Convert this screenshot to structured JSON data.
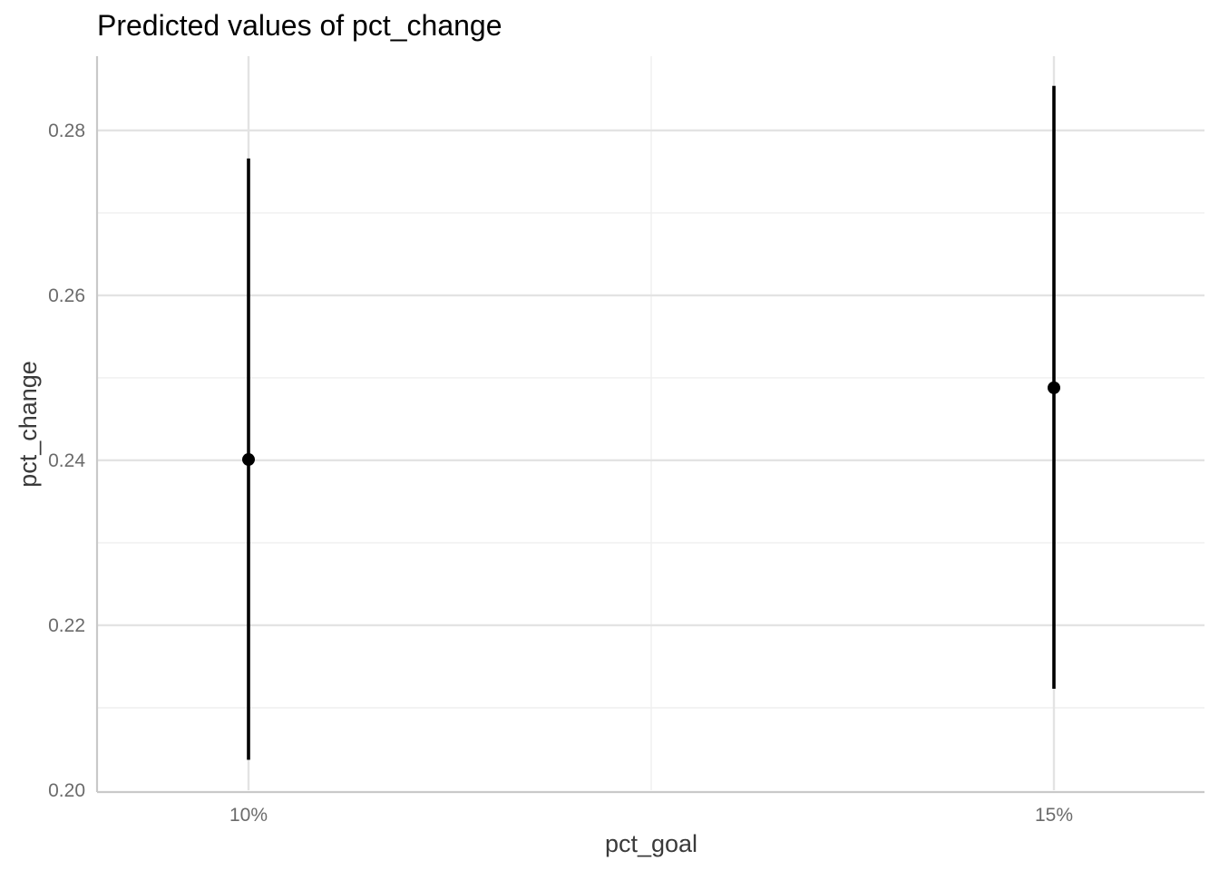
{
  "chart_data": {
    "type": "scatter",
    "title": "Predicted values of pct_change",
    "xlabel": "pct_goal",
    "ylabel": "pct_change",
    "categories": [
      "10%",
      "15%"
    ],
    "points": [
      {
        "x": "10%",
        "y": 0.2401,
        "ymin": 0.2037,
        "ymax": 0.2766
      },
      {
        "x": "15%",
        "y": 0.2488,
        "ymin": 0.2123,
        "ymax": 0.2854
      }
    ],
    "ylim": [
      0.2,
      0.289
    ],
    "yticks": [
      0.2,
      0.22,
      0.24,
      0.26,
      0.28
    ],
    "ytick_labels": [
      "0.20",
      "0.22",
      "0.24",
      "0.26",
      "0.28"
    ],
    "yminor": [
      0.21,
      0.23,
      0.25,
      0.27
    ],
    "grid": true,
    "colors": {
      "points": "#000000",
      "grid": "#e3e3e3",
      "axis": "#c9c9c9"
    }
  }
}
